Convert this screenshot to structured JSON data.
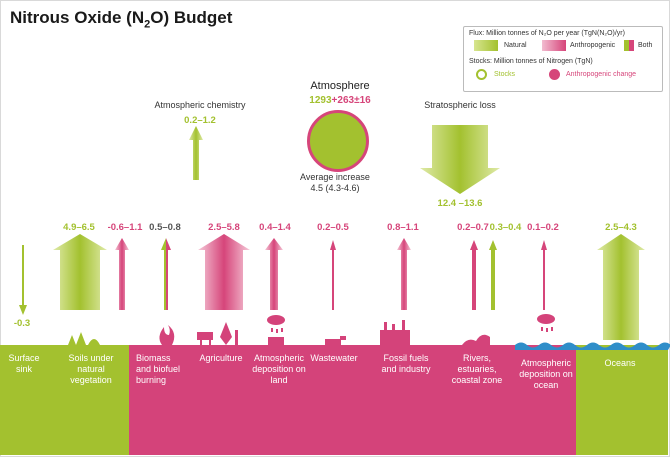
{
  "title": "Nitrous Oxide (N",
  "title_sub": "2",
  "title_end": "O) Budget",
  "colors": {
    "natural": "#a3c12f",
    "anthropogenic": "#d6457a",
    "both": "#e2a5b5",
    "ocean": "#2f8ec9"
  },
  "legend": {
    "flux_title": "Flux: Million tonnes of N₂O per year (TgN(N₂O)/yr)",
    "natural": "Natural",
    "anthropogenic": "Anthropogenic",
    "both": "Both",
    "stocks_title": "Stocks: Million tonnes of Nitrogen (TgN)",
    "stocks": "Stocks",
    "anthropogenic_change": "Anthropogenic change"
  },
  "atmosphere": {
    "label": "Atmosphere",
    "stock_natural": "1293",
    "plus": "+",
    "stock_anthro": "263",
    "pm": "±",
    "stock_unc": "16",
    "increase_label": "Average increase",
    "increase_value": "4.5 (4.3-4.6)"
  },
  "atm_chemistry": {
    "label": "Atmospheric chemistry",
    "value": "0.2–1.2"
  },
  "strat_loss": {
    "label": "Stratospheric loss",
    "value": "12.4 –13.6"
  },
  "fluxes": [
    {
      "value": "-0.3",
      "color": "g"
    },
    {
      "value": "4.9–6.5",
      "color": "g"
    },
    {
      "value": "-0.6–1.1",
      "color": "p"
    },
    {
      "value": "0.5–0.8",
      "color": "k"
    },
    {
      "value": "2.5–5.8",
      "color": "p"
    },
    {
      "value": "0.4–1.4",
      "color": "p"
    },
    {
      "value": "0.2–0.5",
      "color": "p"
    },
    {
      "value": "0.8–1.1",
      "color": "p"
    },
    {
      "value": "0.2–0.7",
      "color": "p"
    },
    {
      "value": "0.3–0.4",
      "color": "g"
    },
    {
      "value": "0.1–0.2",
      "color": "p"
    },
    {
      "value": "2.5–4.3",
      "color": "g"
    }
  ],
  "ground": {
    "surface_sink": "Surface sink",
    "soils": "Soils under natural vegetation",
    "biomass": "Biomass and biofuel burning",
    "agriculture": "Agriculture",
    "atm_dep_land": "Atmospheric deposition on land",
    "wastewater": "Wastewater",
    "fossil": "Fossil fuels and industry",
    "rivers": "Rivers, estuaries, coastal zone",
    "atm_dep_ocean": "Atmospheric deposition on ocean",
    "oceans": "Oceans"
  }
}
